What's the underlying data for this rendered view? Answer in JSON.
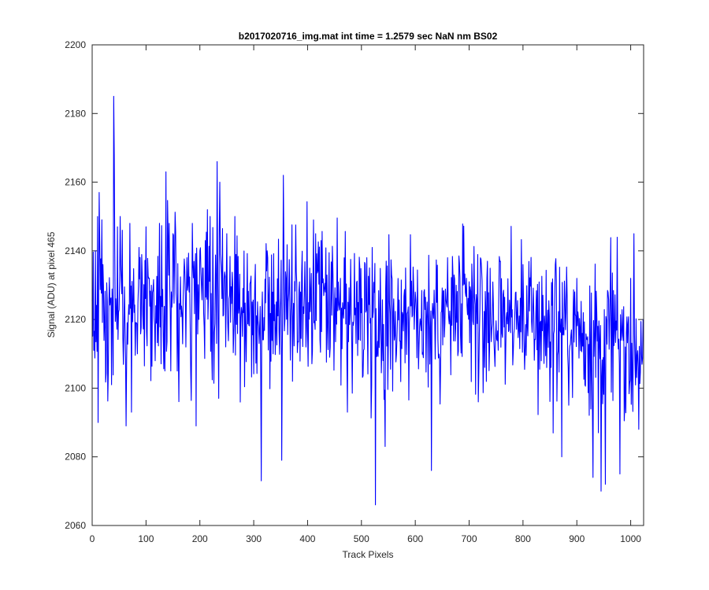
{
  "chart_data": {
    "type": "line",
    "title": "b2017020716_img.mat int time = 1.2579 sec  NaN nm BS02",
    "xlabel": "Track Pixels",
    "ylabel": "Signal (ADU) at pixel 465",
    "xlim": [
      0,
      1024
    ],
    "ylim": [
      2060,
      2200
    ],
    "xticks": [
      "0",
      "100",
      "200",
      "300",
      "400",
      "500",
      "600",
      "700",
      "800",
      "900",
      "1000"
    ],
    "yticks": [
      "2060",
      "2080",
      "2100",
      "2120",
      "2140",
      "2160",
      "2180",
      "2200"
    ],
    "grid": false,
    "series": [
      {
        "color": "#0000ff",
        "n_points": 1024,
        "mean": 2124,
        "noise_sd": 11,
        "trend": [
          [
            0,
            2127
          ],
          [
            500,
            2122
          ],
          [
            800,
            2120
          ],
          [
            1024,
            2112
          ]
        ],
        "features": [
          [
            3,
            2111
          ],
          [
            6,
            2140
          ],
          [
            10,
            2150
          ],
          [
            11,
            2090
          ],
          [
            13,
            2157
          ],
          [
            20,
            2136
          ],
          [
            30,
            2105
          ],
          [
            36,
            2101
          ],
          [
            40,
            2185
          ],
          [
            41,
            2168
          ],
          [
            47,
            2147
          ],
          [
            52,
            2150
          ],
          [
            56,
            2146
          ],
          [
            63,
            2089
          ],
          [
            70,
            2148
          ],
          [
            73,
            2093
          ],
          [
            84,
            2110
          ],
          [
            87,
            2141
          ],
          [
            100,
            2147
          ],
          [
            110,
            2130
          ],
          [
            118,
            2124
          ],
          [
            125,
            2148
          ],
          [
            132,
            2115
          ],
          [
            135,
            2105
          ],
          [
            137,
            2163
          ],
          [
            143,
            2148
          ],
          [
            146,
            2105
          ],
          [
            150,
            2145
          ],
          [
            158,
            2105
          ],
          [
            170,
            2132
          ],
          [
            180,
            2128
          ],
          [
            186,
            2148
          ],
          [
            193,
            2089
          ],
          [
            200,
            2140
          ],
          [
            210,
            2143
          ],
          [
            219,
            2150
          ],
          [
            232,
            2166
          ],
          [
            237,
            2160
          ],
          [
            250,
            2145
          ],
          [
            265,
            2150
          ],
          [
            281,
            2122
          ],
          [
            294,
            2131
          ],
          [
            310,
            2113
          ],
          [
            314,
            2073
          ],
          [
            325,
            2140
          ],
          [
            336,
            2110
          ],
          [
            352,
            2079
          ],
          [
            355,
            2162
          ],
          [
            372,
            2102
          ],
          [
            387,
            2128
          ],
          [
            411,
            2149
          ],
          [
            425,
            2143
          ],
          [
            442,
            2112
          ],
          [
            448,
            2126
          ],
          [
            461,
            2132
          ],
          [
            474,
            2093
          ],
          [
            490,
            2113
          ],
          [
            510,
            2138
          ],
          [
            520,
            2141
          ],
          [
            526,
            2066
          ],
          [
            540,
            2108
          ],
          [
            544,
            2083
          ],
          [
            560,
            2126
          ],
          [
            582,
            2135
          ],
          [
            600,
            2128
          ],
          [
            616,
            2128
          ],
          [
            627,
            2107
          ],
          [
            630,
            2076
          ],
          [
            640,
            2125
          ],
          [
            660,
            2138
          ],
          [
            676,
            2130
          ],
          [
            689,
            2130
          ],
          [
            700,
            2131
          ],
          [
            720,
            2123
          ],
          [
            740,
            2122
          ],
          [
            758,
            2137
          ],
          [
            770,
            2122
          ],
          [
            787,
            2128
          ],
          [
            800,
            2136
          ],
          [
            820,
            2122
          ],
          [
            840,
            2121
          ],
          [
            860,
            2136
          ],
          [
            872,
            2080
          ],
          [
            890,
            2117
          ],
          [
            900,
            2132
          ],
          [
            915,
            2101
          ],
          [
            930,
            2074
          ],
          [
            940,
            2087
          ],
          [
            945,
            2070
          ],
          [
            953,
            2072
          ],
          [
            962,
            2128
          ],
          [
            980,
            2075
          ],
          [
            990,
            2112
          ],
          [
            1000,
            2132
          ],
          [
            1006,
            2145
          ],
          [
            1015,
            2088
          ],
          [
            1020,
            2110
          ],
          [
            1023,
            2120
          ]
        ]
      }
    ]
  }
}
